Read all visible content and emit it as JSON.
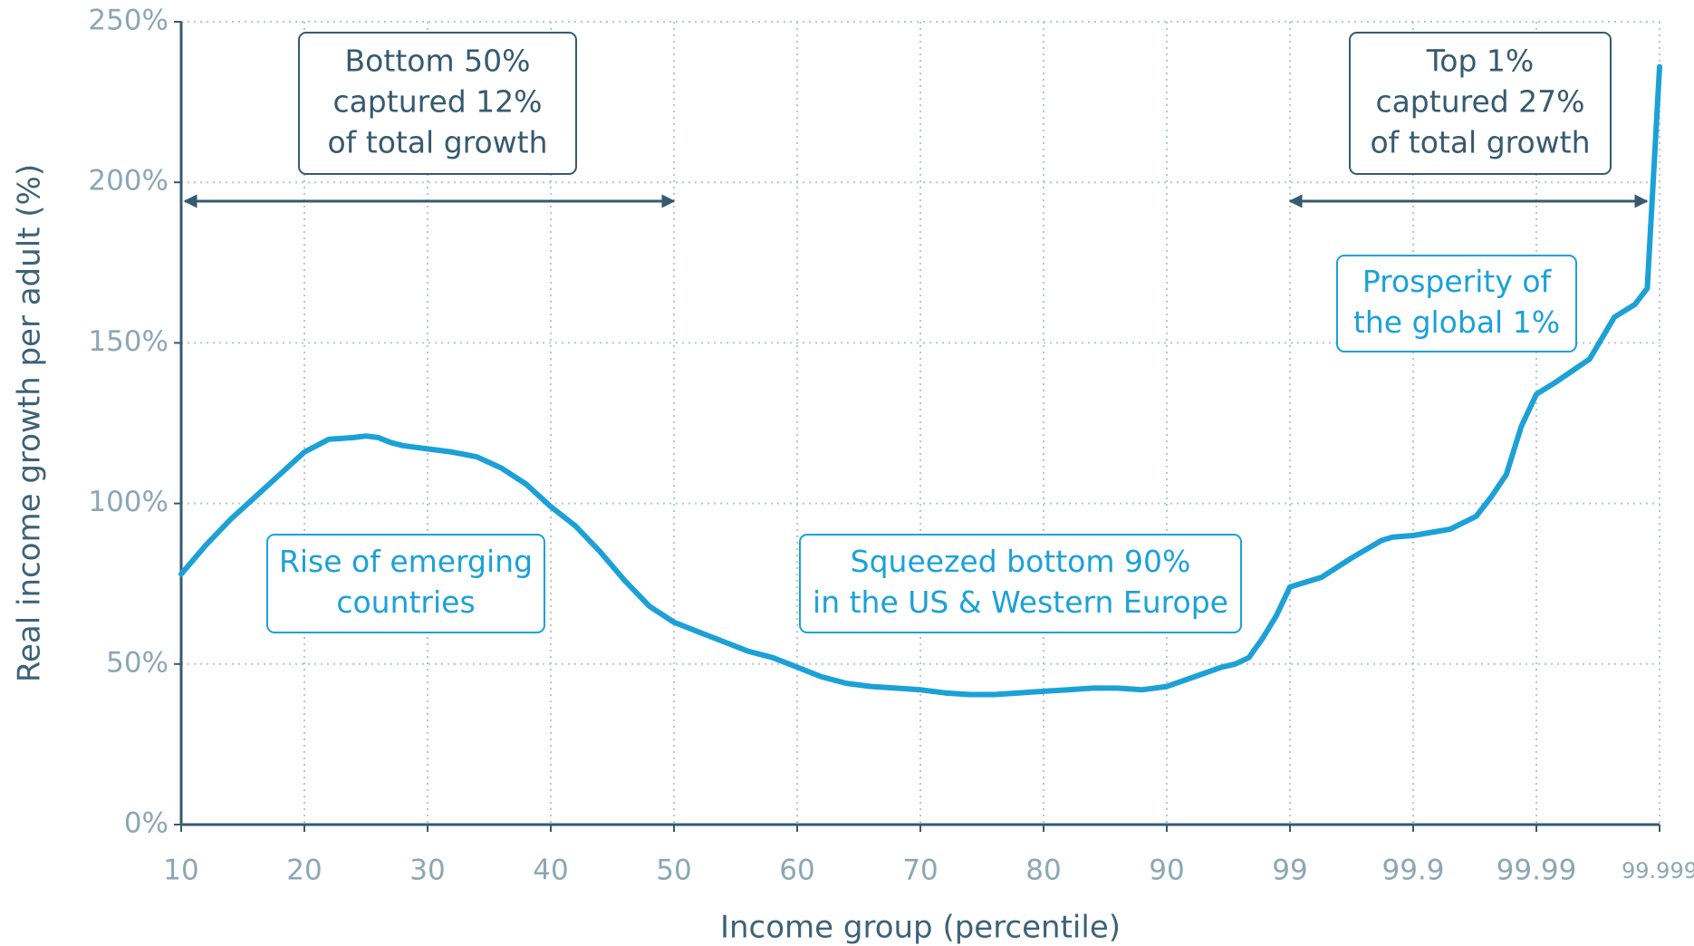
{
  "chart_data": {
    "type": "line",
    "x": [
      10,
      12,
      14,
      16,
      18,
      20,
      22,
      24,
      25,
      26,
      27,
      28,
      30,
      32,
      34,
      36,
      38,
      40,
      42,
      44,
      46,
      48,
      50,
      52,
      54,
      56,
      58,
      60,
      62,
      64,
      66,
      68,
      70,
      72,
      74,
      76,
      78,
      80,
      82,
      84,
      86,
      88,
      90,
      92,
      94,
      95,
      96,
      97,
      98,
      99,
      99.23,
      99.45,
      99.67,
      99.75,
      99.9,
      99.927,
      99.946,
      99.957,
      99.968,
      99.979,
      99.99,
      99.9915,
      99.9939,
      99.9957,
      99.9972,
      99.9981,
      99.999
    ],
    "values": [
      78,
      87,
      95,
      102,
      109,
      116,
      120,
      120.5,
      121,
      120.5,
      119,
      118,
      117,
      116,
      114.5,
      111,
      106,
      99,
      93,
      85,
      76,
      68,
      63,
      60,
      57,
      54,
      52,
      49,
      46,
      44,
      43,
      42.5,
      42,
      41,
      40.5,
      40.5,
      41,
      41.5,
      42,
      42.5,
      42.5,
      42,
      43,
      46,
      49,
      50,
      52,
      58,
      65,
      74,
      77,
      83,
      88.5,
      89.5,
      90,
      92,
      96,
      102,
      109,
      124,
      134,
      138,
      145,
      158,
      162,
      167,
      236
    ],
    "color": "#1ba1d8",
    "xlabel": "Income group (percentile)",
    "ylabel": "Real income growth per adult (%)",
    "xlim": [
      10,
      99.999
    ],
    "xticks": [
      10,
      20,
      30,
      40,
      50,
      60,
      70,
      80,
      90,
      99,
      99.9,
      99.99,
      99.999
    ],
    "ylim": [
      0,
      250
    ],
    "yticks": [
      {
        "value": 0,
        "label": "0%"
      },
      {
        "value": 50,
        "label": "50%"
      },
      {
        "value": 100,
        "label": "100%"
      },
      {
        "value": 150,
        "label": "150%"
      },
      {
        "value": 200,
        "label": "200%"
      },
      {
        "value": 250,
        "label": "250%"
      }
    ],
    "grid": true,
    "annotations": [
      {
        "lines": [
          "Bottom 50%",
          "captured 12%",
          "of total growth"
        ],
        "color": "#365a70"
      },
      {
        "lines": [
          "Top 1%",
          "captured 27%",
          "of total growth"
        ],
        "color": "#365a70"
      },
      {
        "lines": [
          "Rise of emerging",
          "countries"
        ],
        "color": "#1ba1d8"
      },
      {
        "lines": [
          "Squeezed bottom 90%",
          "in the US & Western Europe"
        ],
        "color": "#1ba1d8"
      },
      {
        "lines": [
          "Prosperity of",
          "the global 1%"
        ],
        "color": "#1ba1d8"
      }
    ]
  }
}
